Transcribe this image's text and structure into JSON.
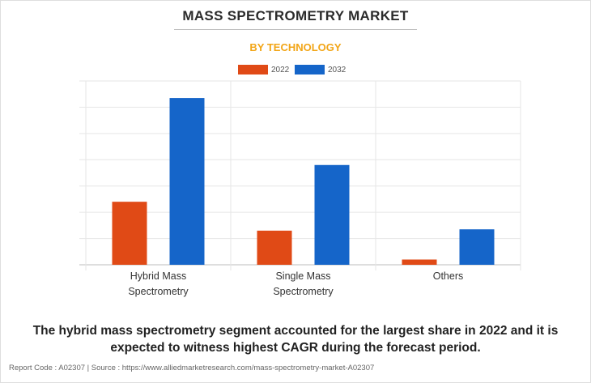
{
  "header": {
    "title": "MASS SPECTROMETRY MARKET",
    "subtitle": "BY TECHNOLOGY"
  },
  "legend": [
    {
      "label": "2022",
      "color": "#e04a16"
    },
    {
      "label": "2032",
      "color": "#1565c9"
    }
  ],
  "caption": "The hybrid mass spectrometry segment accounted for the largest share in 2022 and it is expected to witness highest CAGR during the forecast period.",
  "footer": "Report Code : A02307  |  Source : https://www.alliedmarketresearch.com/mass-spectrometry-market-A02307",
  "chart_data": {
    "type": "bar",
    "title": "MASS SPECTROMETRY MARKET",
    "subtitle": "BY TECHNOLOGY",
    "categories": [
      [
        "Hybrid Mass",
        "Spectrometry"
      ],
      [
        "Single Mass",
        "Spectrometry"
      ],
      [
        "Others"
      ]
    ],
    "series": [
      {
        "name": "2022",
        "color": "#e04a16",
        "values": [
          2.4,
          1.3,
          0.2
        ]
      },
      {
        "name": "2032",
        "color": "#1565c9",
        "values": [
          6.35,
          3.8,
          1.35
        ]
      }
    ],
    "ylim": [
      0,
      7
    ],
    "grid": true,
    "legend_position": "top-center"
  }
}
